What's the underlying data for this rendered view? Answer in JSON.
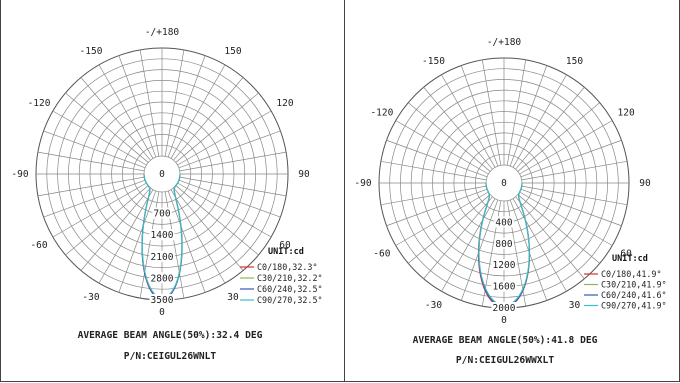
{
  "chart_data": [
    {
      "type": "polar",
      "angle_labels": [
        "-/+180",
        "150",
        "120",
        "90",
        "60",
        "30",
        "0",
        "-30",
        "-60",
        "-90",
        "-120",
        "-150"
      ],
      "radial_ticks": [
        "0",
        "700",
        "1400",
        "2100",
        "2800",
        "3500"
      ],
      "rmax": 3500,
      "unit_label": "UNIT:cd",
      "series": [
        {
          "name": "C0/180,32.3°",
          "color": "#e0302a",
          "peak": 3480,
          "beam_angle": 32.3
        },
        {
          "name": "C30/210,32.2°",
          "color": "#8db84a",
          "peak": 3440,
          "beam_angle": 32.2
        },
        {
          "name": "C60/240,32.5°",
          "color": "#3a58b8",
          "peak": 3470,
          "beam_angle": 32.5
        },
        {
          "name": "C90/270,32.5°",
          "color": "#39c0c8",
          "peak": 3430,
          "beam_angle": 32.5
        }
      ],
      "caption": "AVERAGE BEAM ANGLE(50%):32.4 DEG",
      "part_number": "P/N:CEIGUL26WNLT"
    },
    {
      "type": "polar",
      "angle_labels": [
        "-/+180",
        "150",
        "120",
        "90",
        "60",
        "30",
        "0",
        "-30",
        "-60",
        "-90",
        "-120",
        "-150"
      ],
      "radial_ticks": [
        "0",
        "400",
        "800",
        "1200",
        "1600",
        "2000"
      ],
      "rmax": 2000,
      "unit_label": "UNIT:cd",
      "series": [
        {
          "name": "C0/180,41.9°",
          "color": "#e0302a",
          "peak": 1990,
          "beam_angle": 41.9
        },
        {
          "name": "C30/210,41.9°",
          "color": "#8db84a",
          "peak": 1960,
          "beam_angle": 41.9
        },
        {
          "name": "C60/240,41.6°",
          "color": "#3a58b8",
          "peak": 1980,
          "beam_angle": 41.6
        },
        {
          "name": "C90/270,41.9°",
          "color": "#39c0c8",
          "peak": 1950,
          "beam_angle": 41.9
        }
      ],
      "caption": "AVERAGE BEAM ANGLE(50%):41.8 DEG",
      "part_number": "P/N:CEIGUL26WWXLT"
    }
  ]
}
